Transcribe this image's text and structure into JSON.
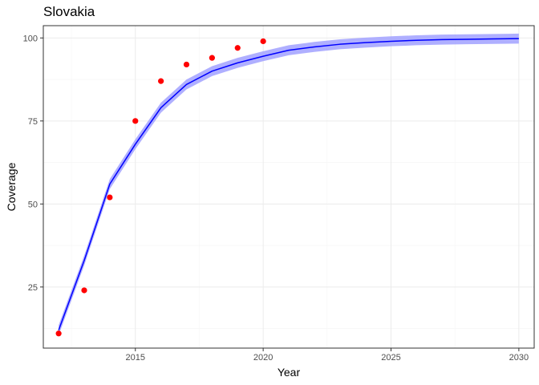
{
  "chart_data": {
    "type": "line",
    "title": "Slovakia",
    "xlabel": "Year",
    "ylabel": "Coverage",
    "xlim": [
      2011.4,
      2030.6
    ],
    "ylim": [
      6.6,
      103.7
    ],
    "x_ticks": [
      2015,
      2020,
      2025,
      2030
    ],
    "y_ticks": [
      25,
      50,
      75,
      100
    ],
    "grid": true,
    "legend": "none",
    "colors": {
      "line": "#0000ff",
      "band": "#a6a6ff",
      "points": "#ff0000",
      "grid_major": "#ebebeb",
      "grid_minor": "#f5f5f5",
      "panel_border": "#333333"
    },
    "series": [
      {
        "kind": "fit-line",
        "x": [
          2012,
          2013,
          2014,
          2015,
          2016,
          2017,
          2018,
          2019,
          2020,
          2021,
          2022,
          2023,
          2024,
          2025,
          2026,
          2027,
          2028,
          2029,
          2030
        ],
        "y": [
          12,
          33,
          56,
          68,
          79,
          86,
          90,
          92.5,
          94.5,
          96.3,
          97.3,
          98.1,
          98.6,
          99.0,
          99.3,
          99.5,
          99.6,
          99.7,
          99.8
        ],
        "band_halfwidth": 1.5
      },
      {
        "kind": "observed-points",
        "x": [
          2012,
          2013,
          2014,
          2015,
          2016,
          2017,
          2018,
          2019,
          2020
        ],
        "y": [
          11,
          24,
          52,
          75,
          87,
          92,
          94,
          97,
          99
        ]
      }
    ]
  }
}
